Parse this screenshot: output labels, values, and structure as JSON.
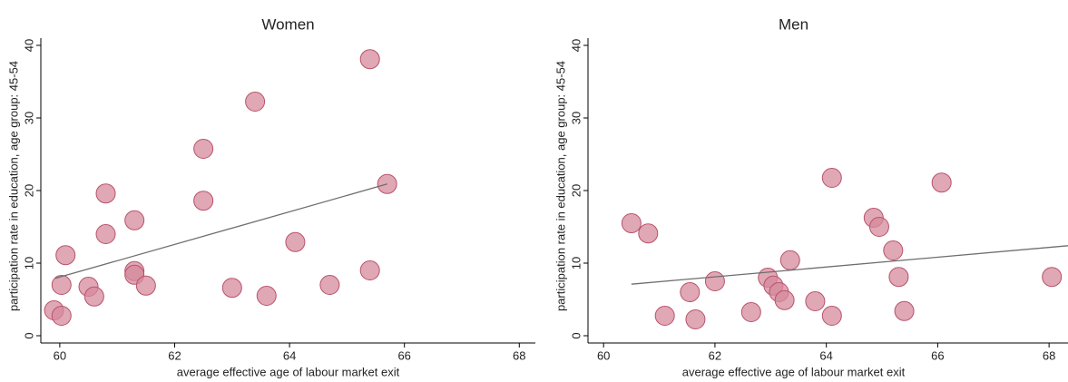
{
  "chart_data": [
    {
      "type": "scatter",
      "title": "Women",
      "x_label": "average effective age of labour market exit",
      "y_label": "participation rate in education, age group: 45-54",
      "x": [
        59.9,
        60.03,
        60.03,
        60.1,
        60.5,
        60.6,
        60.8,
        60.8,
        61.3,
        61.3,
        61.3,
        61.5,
        62.5,
        62.5,
        63.0,
        63.4,
        63.6,
        64.1,
        64.7,
        65.4,
        65.4,
        65.7
      ],
      "values": [
        3.5,
        2.75,
        7,
        11.1,
        6.75,
        5.4,
        14,
        19.6,
        15.9,
        8.9,
        8.4,
        6.9,
        18.6,
        25.75,
        6.6,
        32.25,
        5.5,
        12.9,
        7,
        9,
        38.1,
        20.9
      ],
      "color": "#d58a9c",
      "edge_color": "#b8526a",
      "fit": {
        "x": [
          59.92,
          65.7
        ],
        "values": [
          7.9,
          20.9
        ],
        "color": "#6e6e6e"
      },
      "xlim": [
        59.67,
        68.28
      ],
      "ylim": [
        -1,
        41
      ],
      "xticks": [
        60,
        62,
        64,
        66,
        68
      ],
      "yticks": [
        0,
        10,
        20,
        30,
        40
      ]
    },
    {
      "type": "scatter",
      "title": "Men",
      "x_label": "average effective age of labour market exit",
      "y_label": "participation rate in education, age group: 45-54",
      "x": [
        60.5,
        60.8,
        61.1,
        61.55,
        61.65,
        62.0,
        62.65,
        62.95,
        63.05,
        63.15,
        63.25,
        63.35,
        63.8,
        64.1,
        64.1,
        64.85,
        64.95,
        65.2,
        65.3,
        65.4,
        66.07,
        68.05
      ],
      "values": [
        15.5,
        14.1,
        2.75,
        6,
        2.25,
        7.5,
        3.25,
        8,
        6.9,
        6,
        4.9,
        10.4,
        4.75,
        21.75,
        2.75,
        16.25,
        15,
        11.75,
        8.1,
        3.4,
        21.1,
        8.1
      ],
      "color": "#d58a9c",
      "edge_color": "#b8526a",
      "fit": {
        "x": [
          60.5,
          68.34
        ],
        "values": [
          7.1,
          12.4
        ],
        "color": "#6e6e6e"
      },
      "xlim": [
        59.72,
        68.34
      ],
      "ylim": [
        -1,
        41
      ],
      "xticks": [
        60,
        62,
        64,
        66,
        68
      ],
      "yticks": [
        0,
        10,
        20,
        30,
        40
      ]
    }
  ]
}
